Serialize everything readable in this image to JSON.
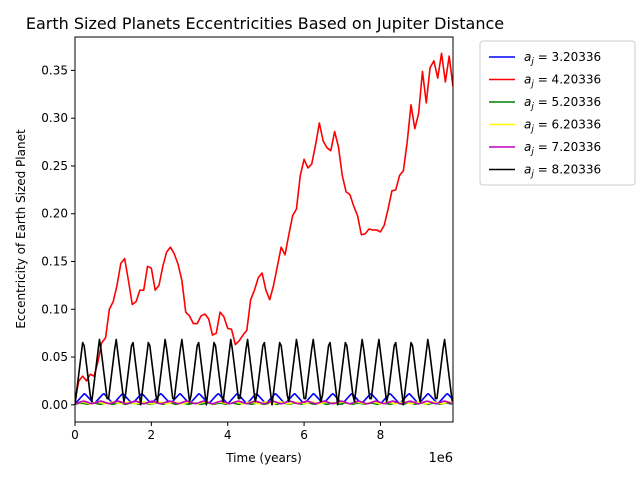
{
  "chart_data": {
    "type": "line",
    "title": "Earth Sized Planets Eccentricities Based on Jupiter Distance",
    "xlabel": "Time (years)",
    "ylabel": "Eccentricity of Earth Sized Planet",
    "x_offset_label": "1e6",
    "xlim": [
      0,
      9.9
    ],
    "ylim": [
      -0.018,
      0.385
    ],
    "x_ticks": [
      0,
      2,
      4,
      6,
      8
    ],
    "x_tick_labels": [
      "0",
      "2",
      "4",
      "6",
      "8"
    ],
    "y_ticks": [
      0.0,
      0.05,
      0.1,
      0.15,
      0.2,
      0.25,
      0.3,
      0.35
    ],
    "y_tick_labels": [
      "0.00",
      "0.05",
      "0.10",
      "0.15",
      "0.20",
      "0.25",
      "0.30",
      "0.35"
    ],
    "grid": false,
    "legend_position": "outside-right-top",
    "series": [
      {
        "name": "a_j = 3.20336",
        "legend_sub": "j",
        "legend_value": "3.20336",
        "color": "#0000ff",
        "pattern": {
          "period": 0.5,
          "min": 0.001,
          "max": 0.012
        }
      },
      {
        "name": "a_j = 4.20336",
        "legend_sub": "j",
        "legend_value": "4.20336",
        "color": "#ff0000",
        "x": [
          0,
          0.1,
          0.2,
          0.3,
          0.4,
          0.5,
          0.6,
          0.7,
          0.8,
          0.9,
          1.0,
          1.1,
          1.2,
          1.3,
          1.4,
          1.5,
          1.6,
          1.7,
          1.8,
          1.9,
          2.0,
          2.1,
          2.2,
          2.3,
          2.4,
          2.5,
          2.6,
          2.7,
          2.8,
          2.9,
          3.0,
          3.1,
          3.2,
          3.3,
          3.4,
          3.5,
          3.6,
          3.7,
          3.8,
          3.9,
          4.0,
          4.1,
          4.2,
          4.3,
          4.4,
          4.5,
          4.6,
          4.7,
          4.8,
          4.9,
          5.0,
          5.1,
          5.2,
          5.3,
          5.4,
          5.5,
          5.6,
          5.7,
          5.8,
          5.9,
          6.0,
          6.1,
          6.2,
          6.3,
          6.4,
          6.5,
          6.6,
          6.7,
          6.8,
          6.9,
          7.0,
          7.1,
          7.2,
          7.3,
          7.4,
          7.5,
          7.6,
          7.7,
          7.8,
          7.9,
          8.0,
          8.1,
          8.2,
          8.3,
          8.4,
          8.5,
          8.6,
          8.7,
          8.8,
          8.9,
          9.0,
          9.1,
          9.2,
          9.3,
          9.4,
          9.5,
          9.6,
          9.7,
          9.8,
          9.9
        ],
        "values": [
          0.005,
          0.025,
          0.03,
          0.025,
          0.032,
          0.03,
          0.045,
          0.065,
          0.07,
          0.1,
          0.108,
          0.125,
          0.148,
          0.153,
          0.13,
          0.105,
          0.108,
          0.12,
          0.12,
          0.145,
          0.143,
          0.12,
          0.125,
          0.145,
          0.16,
          0.165,
          0.158,
          0.147,
          0.13,
          0.097,
          0.093,
          0.085,
          0.085,
          0.093,
          0.095,
          0.09,
          0.073,
          0.075,
          0.097,
          0.092,
          0.08,
          0.079,
          0.063,
          0.067,
          0.073,
          0.078,
          0.11,
          0.12,
          0.133,
          0.138,
          0.12,
          0.11,
          0.125,
          0.145,
          0.165,
          0.157,
          0.178,
          0.198,
          0.205,
          0.24,
          0.257,
          0.248,
          0.252,
          0.272,
          0.295,
          0.276,
          0.269,
          0.266,
          0.286,
          0.27,
          0.24,
          0.223,
          0.22,
          0.208,
          0.198,
          0.178,
          0.179,
          0.184,
          0.183,
          0.183,
          0.181,
          0.188,
          0.205,
          0.224,
          0.225,
          0.24,
          0.245,
          0.275,
          0.314,
          0.289,
          0.305,
          0.349,
          0.316,
          0.353,
          0.36,
          0.342,
          0.368,
          0.338,
          0.365,
          0.333
        ]
      },
      {
        "name": "a_j = 5.20336",
        "legend_sub": "j",
        "legend_value": "5.20336",
        "color": "#008000",
        "pattern": {
          "period": 0.33,
          "min": 0.0005,
          "max": 0.002
        }
      },
      {
        "name": "a_j = 6.20336",
        "legend_sub": "j",
        "legend_value": "6.20336",
        "color": "#ffff00",
        "pattern": {
          "period": 0.4,
          "min": 0.001,
          "max": 0.003
        }
      },
      {
        "name": "a_j = 7.20336",
        "legend_sub": "j",
        "legend_value": "7.20336",
        "color": "#bf00bf",
        "pattern": {
          "period": 0.45,
          "min": 0.001,
          "max": 0.004
        }
      },
      {
        "name": "a_j = 8.20336",
        "legend_sub": "j",
        "legend_value": "8.20336",
        "color": "#000000",
        "pattern": {
          "period": 0.43,
          "min": 0.0,
          "max": 0.07
        }
      }
    ]
  }
}
